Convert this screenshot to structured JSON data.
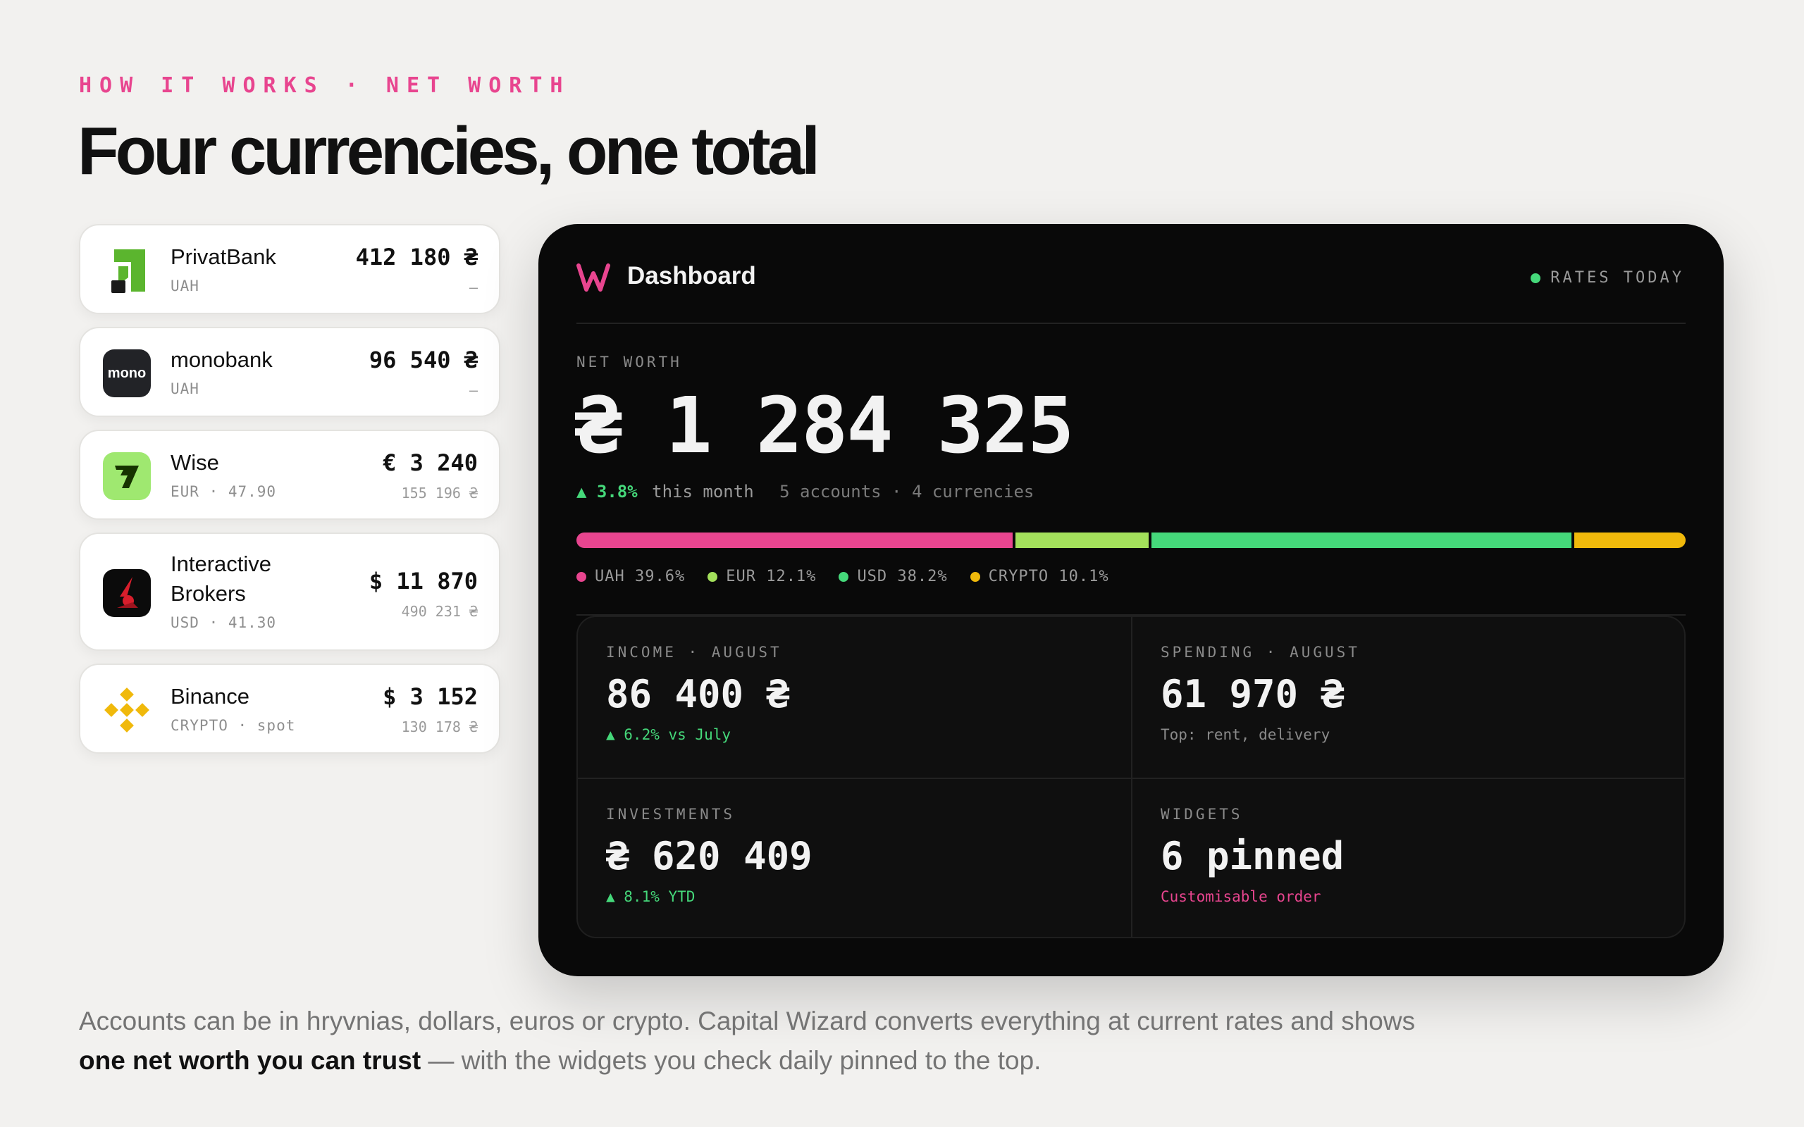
{
  "eyebrow": "HOW IT WORKS · NET WORTH",
  "headline": "Four currencies, one total",
  "accounts": [
    {
      "name": "PrivatBank",
      "sub": "UAH",
      "amount": "412 180 ₴",
      "converted": "—",
      "icon": "privatbank-logo"
    },
    {
      "name": "monobank",
      "sub": "UAH",
      "amount": "96 540 ₴",
      "converted": "—",
      "icon": "monobank-logo",
      "logo_text": "mono"
    },
    {
      "name": "Wise",
      "sub": "EUR · 47.90",
      "amount": "€ 3 240",
      "converted": "155 196 ₴",
      "icon": "wise-logo"
    },
    {
      "name": "Interactive\nBrokers",
      "name_line1": "Interactive",
      "name_line2": "Brokers",
      "sub": "USD · 41.30",
      "amount": "$ 11 870",
      "converted": "490 231 ₴",
      "icon": "interactive-brokers-logo"
    },
    {
      "name": "Binance",
      "sub": "CRYPTO · spot",
      "amount": "$ 3 152",
      "converted": "130 178 ₴",
      "icon": "binance-logo"
    }
  ],
  "dashboard": {
    "title": "Dashboard",
    "rates_status": "RATES TODAY",
    "net_worth_label": "NET WORTH",
    "net_worth_value": "₴ 1 284 325",
    "change_pct": "▲ 3.8%",
    "change_period": "this month",
    "meta": "5 accounts · 4 currencies",
    "allocation": [
      {
        "currency": "UAH",
        "label": "UAH 39.6%",
        "pct": 39.6,
        "color": "#e8458f"
      },
      {
        "currency": "EUR",
        "label": "EUR 12.1%",
        "pct": 12.1,
        "color": "#a3e05b"
      },
      {
        "currency": "USD",
        "label": "USD 38.2%",
        "pct": 38.2,
        "color": "#45d87a"
      },
      {
        "currency": "CRYPTO",
        "label": "CRYPTO 10.1%",
        "pct": 10.1,
        "color": "#f0b90b"
      }
    ],
    "stats": {
      "income": {
        "label": "INCOME · AUGUST",
        "value": "86 400 ₴",
        "note": "▲ 6.2% vs July"
      },
      "spending": {
        "label": "SPENDING · AUGUST",
        "value": "61 970 ₴",
        "note": "Top: rent, delivery"
      },
      "investments": {
        "label": "INVESTMENTS",
        "value": "₴ 620 409",
        "note": "▲ 8.1% YTD"
      },
      "widgets": {
        "label": "WIDGETS",
        "value": "6 pinned",
        "note": "Customisable order"
      }
    }
  },
  "footer": {
    "line1": "Accounts can be in hryvnias, dollars, euros or crypto. Capital Wizard converts everything at current rates and shows",
    "bold": "one net worth you can trust",
    "rest": " — with the widgets you check daily pinned to the top."
  },
  "colors": {
    "accent_pink": "#e8458f",
    "positive_green": "#45d87a",
    "dashboard_bg": "#090909",
    "page_bg": "#f2f1ef"
  }
}
